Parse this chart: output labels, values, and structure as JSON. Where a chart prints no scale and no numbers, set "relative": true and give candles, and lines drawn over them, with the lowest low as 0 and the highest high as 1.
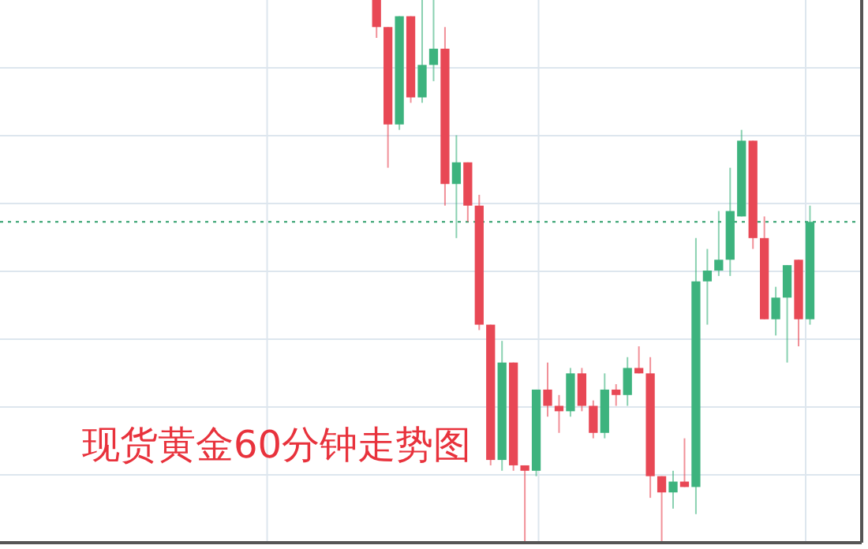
{
  "chart_data": {
    "type": "candlestick",
    "title": "现货黄金60分钟走势图",
    "relative": true,
    "grid": true,
    "categories": [
      null,
      null,
      null,
      null,
      null,
      null,
      null,
      null,
      null,
      null,
      null,
      null,
      null,
      null,
      null,
      null,
      null,
      null,
      null,
      null,
      null,
      null,
      null,
      null,
      null,
      null,
      null,
      null,
      null,
      null,
      null,
      null,
      null,
      null,
      null,
      null,
      null,
      null,
      null
    ],
    "ohlc": [
      [
        1.0,
        1.0,
        0.93,
        0.95
      ],
      [
        0.95,
        0.95,
        0.69,
        0.77
      ],
      [
        0.77,
        0.97,
        0.76,
        0.97
      ],
      [
        0.97,
        0.97,
        0.81,
        0.82
      ],
      [
        0.82,
        1.0,
        0.81,
        0.88
      ],
      [
        0.88,
        1.0,
        0.85,
        0.91
      ],
      [
        0.91,
        0.95,
        0.62,
        0.66
      ],
      [
        0.66,
        0.75,
        0.56,
        0.7
      ],
      [
        0.7,
        0.7,
        0.59,
        0.62
      ],
      [
        0.62,
        0.64,
        0.39,
        0.4
      ],
      [
        0.4,
        0.4,
        0.14,
        0.15
      ],
      [
        0.15,
        0.37,
        0.13,
        0.33
      ],
      [
        0.33,
        0.33,
        0.13,
        0.14
      ],
      [
        0.14,
        0.14,
        0.0,
        0.13
      ],
      [
        0.13,
        0.28,
        0.12,
        0.28
      ],
      [
        0.28,
        0.33,
        0.23,
        0.25
      ],
      [
        0.25,
        0.27,
        0.2,
        0.24
      ],
      [
        0.24,
        0.32,
        0.23,
        0.31
      ],
      [
        0.31,
        0.32,
        0.24,
        0.25
      ],
      [
        0.25,
        0.26,
        0.19,
        0.2
      ],
      [
        0.2,
        0.31,
        0.19,
        0.28
      ],
      [
        0.28,
        0.29,
        0.25,
        0.27
      ],
      [
        0.27,
        0.34,
        0.25,
        0.32
      ],
      [
        0.32,
        0.36,
        0.31,
        0.31
      ],
      [
        0.31,
        0.34,
        0.08,
        0.12
      ],
      [
        0.12,
        0.12,
        0.0,
        0.09
      ],
      [
        0.09,
        0.13,
        0.06,
        0.11
      ],
      [
        0.11,
        0.19,
        0.1,
        0.1
      ],
      [
        0.1,
        0.56,
        0.05,
        0.48
      ],
      [
        0.48,
        0.54,
        0.4,
        0.5
      ],
      [
        0.5,
        0.61,
        0.49,
        0.52
      ],
      [
        0.52,
        0.69,
        0.49,
        0.61
      ],
      [
        0.6,
        0.76,
        0.6,
        0.74
      ],
      [
        0.74,
        0.74,
        0.54,
        0.56
      ],
      [
        0.56,
        0.6,
        0.41,
        0.41
      ],
      [
        0.41,
        0.47,
        0.38,
        0.45
      ],
      [
        0.45,
        0.51,
        0.33,
        0.51
      ],
      [
        0.52,
        0.52,
        0.36,
        0.41
      ],
      [
        0.41,
        0.62,
        0.4,
        0.59
      ]
    ],
    "colors": [
      "#e84855",
      "#e84855",
      "#3db37e",
      "#e84855",
      "#3db37e",
      "#3db37e",
      "#e84855",
      "#3db37e",
      "#e84855",
      "#e84855",
      "#e84855",
      "#3db37e",
      "#e84855",
      "#e84855",
      "#3db37e",
      "#e84855",
      "#e84855",
      "#3db37e",
      "#e84855",
      "#e84855",
      "#3db37e",
      "#e84855",
      "#3db37e",
      "#e84855",
      "#e84855",
      "#e84855",
      "#3db37e",
      "#e84855",
      "#3db37e",
      "#3db37e",
      "#3db37e",
      "#3db37e",
      "#3db37e",
      "#e84855",
      "#e84855",
      "#3db37e",
      "#3db37e",
      "#e84855",
      "#3db37e"
    ],
    "ref_lines": [
      {
        "axis": "y",
        "value": 0.59,
        "color": "#2e9e6b",
        "line_style": "dotted"
      }
    ]
  }
}
